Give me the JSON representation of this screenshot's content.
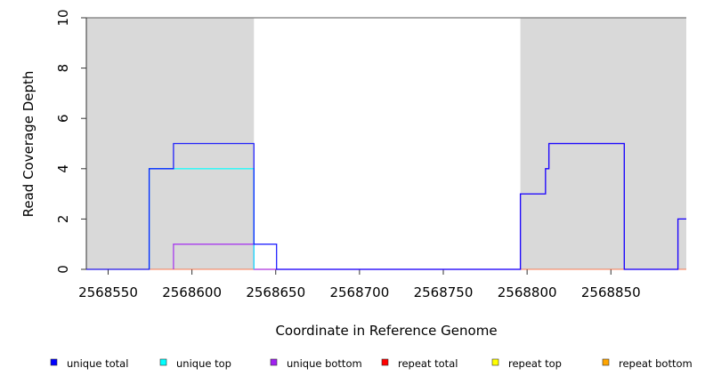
{
  "chart_data": {
    "type": "line",
    "xlabel": "Coordinate in Reference Genome",
    "ylabel": "Read Coverage Depth",
    "xlim": [
      2568537,
      2568895
    ],
    "ylim": [
      0,
      10
    ],
    "xticks": [
      2568550,
      2568600,
      2568650,
      2568700,
      2568750,
      2568800,
      2568850
    ],
    "yticks": [
      0,
      2,
      4,
      6,
      8,
      10
    ],
    "shaded_regions": [
      [
        2568537,
        2568637
      ],
      [
        2568796,
        2568895
      ]
    ],
    "top_line": 10,
    "series": [
      {
        "name": "unique total",
        "color": "#0000ff",
        "steps": [
          [
            2568537,
            0
          ],
          [
            2568574.5,
            4
          ],
          [
            2568589,
            5
          ],
          [
            2568637,
            1
          ],
          [
            2568650.5,
            0
          ],
          [
            2568796,
            3
          ],
          [
            2568811,
            4
          ],
          [
            2568813,
            5
          ],
          [
            2568858,
            0
          ],
          [
            2568890,
            2
          ],
          [
            2568895,
            2
          ]
        ]
      },
      {
        "name": "unique top",
        "color": "#00ffff",
        "steps": [
          [
            2568574.5,
            4
          ],
          [
            2568637,
            0
          ]
        ]
      },
      {
        "name": "unique bottom",
        "color": "#a020f0",
        "steps": [
          [
            2568589,
            1
          ],
          [
            2568637,
            0
          ],
          [
            2568796,
            3
          ],
          [
            2568811,
            4
          ],
          [
            2568813,
            5
          ],
          [
            2568858,
            0
          ],
          [
            2568890,
            2
          ],
          [
            2568895,
            2
          ]
        ]
      },
      {
        "name": "repeat total",
        "color": "#ff0000",
        "steps": []
      },
      {
        "name": "repeat top",
        "color": "#ffff00",
        "steps": []
      },
      {
        "name": "repeat bottom",
        "color": "#ffa500",
        "steps": []
      }
    ],
    "legend": "bottom"
  }
}
